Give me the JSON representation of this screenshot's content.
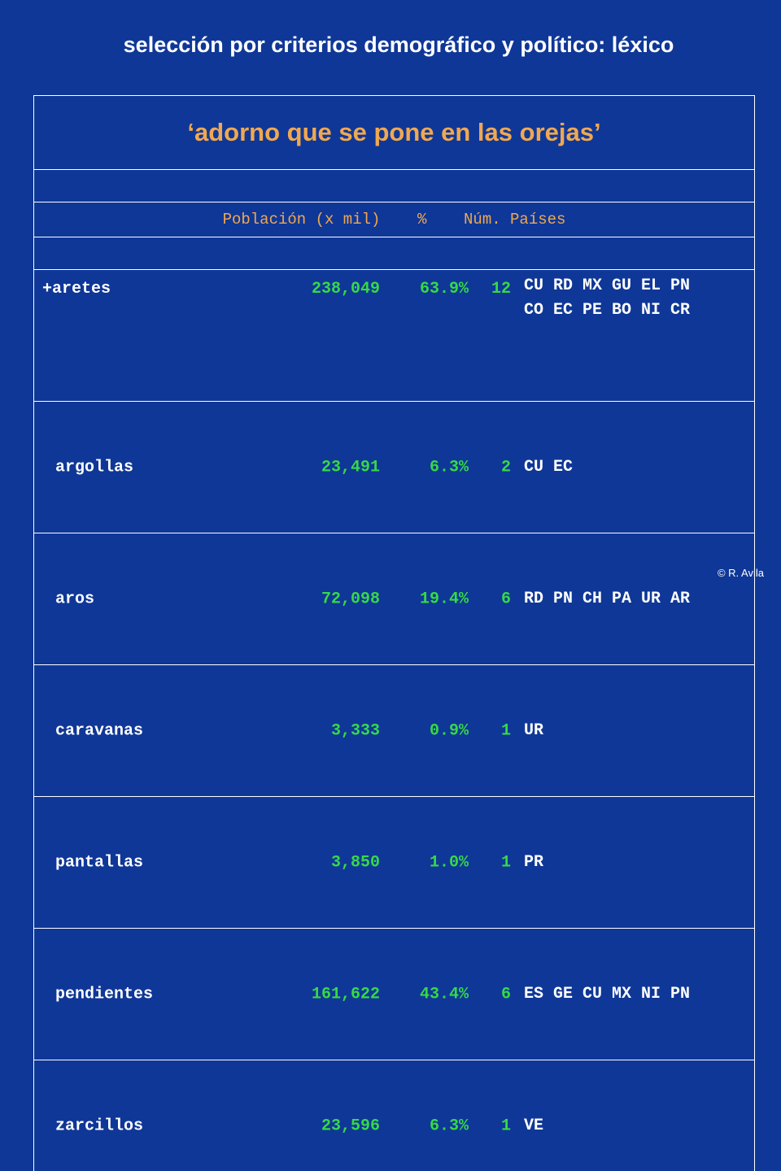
{
  "slide_title": "selección por criterios demográfico y político: léxico",
  "concept": "‘adorno que se pone en las orejas’",
  "header": "Población (x mil)    %    Núm. Países",
  "rows": [
    {
      "lexeme": "+aretes",
      "population": "238,049",
      "percent": "63.9%",
      "num_countries": "12",
      "countries": [
        "CU RD MX GU EL PN",
        "CO EC PE BO NI CR"
      ]
    },
    {
      "lexeme": "argollas",
      "population": "23,491",
      "percent": "6.3%",
      "num_countries": "2",
      "countries": [
        "CU EC"
      ]
    },
    {
      "lexeme": "aros",
      "population": "72,098",
      "percent": "19.4%",
      "num_countries": "6",
      "countries": [
        "RD PN CH PA UR AR"
      ]
    },
    {
      "lexeme": "caravanas",
      "population": "3,333",
      "percent": "0.9%",
      "num_countries": "1",
      "countries": [
        "UR"
      ]
    },
    {
      "lexeme": "pantallas",
      "population": "3,850",
      "percent": "1.0%",
      "num_countries": "1",
      "countries": [
        "PR"
      ]
    },
    {
      "lexeme": "pendientes",
      "population": "161,622",
      "percent": "43.4%",
      "num_countries": "6",
      "countries": [
        "ES GE CU MX NI PN"
      ]
    },
    {
      "lexeme": "zarcillos",
      "population": "23,596",
      "percent": "6.3%",
      "num_countries": "1",
      "countries": [
        "VE"
      ]
    }
  ],
  "credit": "© R. Avila",
  "colors": {
    "background": "#0f3797",
    "accent_orange": "#f0a850",
    "value_green": "#36d946",
    "text_white": "#ffffff"
  }
}
